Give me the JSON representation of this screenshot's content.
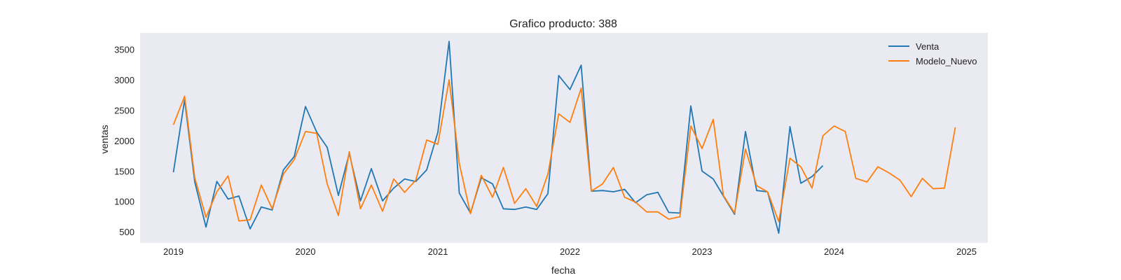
{
  "chart_data": {
    "type": "line",
    "title": "Grafico producto: 388",
    "xlabel": "fecha",
    "ylabel": "ventas",
    "xlim": [
      "2018-10-01",
      "2025-03-01"
    ],
    "ylim": [
      330,
      3780
    ],
    "x_ticks": [
      "2019",
      "2020",
      "2021",
      "2022",
      "2023",
      "2024",
      "2025"
    ],
    "y_ticks": [
      500,
      1000,
      1500,
      2000,
      2500,
      3000,
      3500
    ],
    "grid": false,
    "legend_position": "top-right",
    "colors": {
      "Venta": "#1f77b4",
      "Modelo_Nuevo": "#ff7f0e",
      "background": "#eaeaf2"
    },
    "series": [
      {
        "name": "Venta",
        "start": "2019-01",
        "values": [
          1490,
          2680,
          1330,
          590,
          1340,
          1050,
          1100,
          560,
          920,
          870,
          1530,
          1750,
          2570,
          2150,
          1900,
          1110,
          1800,
          1020,
          1550,
          1020,
          1230,
          1380,
          1340,
          1530,
          2150,
          3640,
          1150,
          820,
          1400,
          1300,
          890,
          880,
          920,
          880,
          1140,
          3080,
          2850,
          3250,
          1180,
          1190,
          1170,
          1210,
          990,
          1120,
          1160,
          830,
          820,
          2580,
          1510,
          1380,
          1100,
          800,
          2160,
          1190,
          1170,
          490,
          2240,
          1310,
          1420,
          1600
        ]
      },
      {
        "name": "Modelo_Nuevo",
        "start": "2019-01",
        "values": [
          2270,
          2740,
          1400,
          750,
          1170,
          1430,
          690,
          710,
          1280,
          890,
          1460,
          1700,
          2160,
          2130,
          1300,
          780,
          1830,
          890,
          1280,
          850,
          1380,
          1160,
          1360,
          2020,
          1950,
          3010,
          1640,
          810,
          1440,
          1080,
          1570,
          980,
          1220,
          930,
          1460,
          2450,
          2310,
          2870,
          1180,
          1300,
          1570,
          1080,
          1000,
          840,
          840,
          720,
          760,
          2250,
          1880,
          2360,
          1110,
          820,
          1870,
          1270,
          1170,
          680,
          1720,
          1580,
          1230,
          2090,
          2250,
          2160,
          1390,
          1330,
          1580,
          1480,
          1360,
          1090,
          1390,
          1220,
          1230,
          2230
        ]
      }
    ]
  }
}
